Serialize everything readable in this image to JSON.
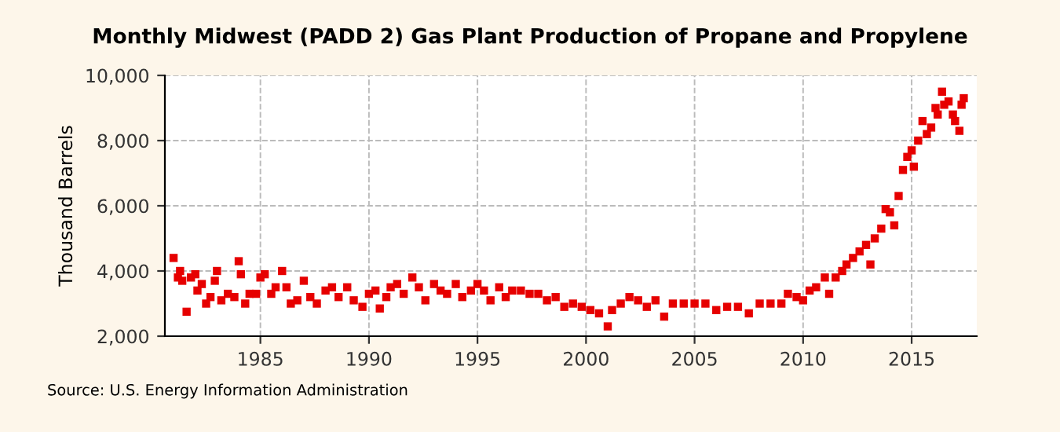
{
  "chart_data": {
    "type": "scatter",
    "title": "Monthly Midwest (PADD 2) Gas Plant Production of Propane and Propylene",
    "ylabel": "Thousand Barrels",
    "annotations": [
      "Source: U.S. Energy Information Administration"
    ],
    "x": [
      1981.0,
      1981.2,
      1981.3,
      1981.4,
      1981.6,
      1981.8,
      1982.0,
      1982.1,
      1982.3,
      1982.5,
      1982.7,
      1982.9,
      1983.0,
      1983.2,
      1983.5,
      1983.8,
      1984.0,
      1984.1,
      1984.3,
      1984.5,
      1984.8,
      1985.0,
      1985.2,
      1985.5,
      1985.7,
      1986.0,
      1986.2,
      1986.4,
      1986.7,
      1987.0,
      1987.3,
      1987.6,
      1988.0,
      1988.3,
      1988.6,
      1989.0,
      1989.3,
      1989.7,
      1990.0,
      1990.3,
      1990.5,
      1990.8,
      1991.0,
      1991.3,
      1991.6,
      1992.0,
      1992.3,
      1992.6,
      1993.0,
      1993.3,
      1993.6,
      1994.0,
      1994.3,
      1994.7,
      1995.0,
      1995.3,
      1995.6,
      1996.0,
      1996.3,
      1996.6,
      1997.0,
      1997.4,
      1997.8,
      1998.2,
      1998.6,
      1999.0,
      1999.4,
      1999.8,
      2000.2,
      2000.6,
      2001.0,
      2001.2,
      2001.6,
      2002.0,
      2002.4,
      2002.8,
      2003.2,
      2003.6,
      2004.0,
      2004.5,
      2005.0,
      2005.5,
      2006.0,
      2006.5,
      2007.0,
      2007.5,
      2008.0,
      2008.5,
      2009.0,
      2009.3,
      2009.7,
      2010.0,
      2010.3,
      2010.6,
      2011.0,
      2011.2,
      2011.5,
      2011.8,
      2012.0,
      2012.3,
      2012.6,
      2012.9,
      2013.1,
      2013.3,
      2013.6,
      2013.8,
      2014.0,
      2014.2,
      2014.4,
      2014.6,
      2014.8,
      2015.0,
      2015.1,
      2015.3,
      2015.5,
      2015.7,
      2015.9,
      2016.1,
      2016.2,
      2016.4,
      2016.5,
      2016.7,
      2016.9,
      2017.0,
      2017.2,
      2017.3,
      2017.4
    ],
    "series": [
      {
        "color": "#e60000",
        "values": [
          4400,
          3800,
          4000,
          3700,
          2750,
          3800,
          3900,
          3400,
          3600,
          3000,
          3200,
          3700,
          4000,
          3100,
          3300,
          3200,
          4300,
          3900,
          3000,
          3300,
          3300,
          3800,
          3900,
          3300,
          3500,
          4000,
          3500,
          3000,
          3100,
          3700,
          3200,
          3000,
          3400,
          3500,
          3200,
          3500,
          3100,
          2900,
          3300,
          3400,
          2850,
          3200,
          3500,
          3600,
          3300,
          3800,
          3500,
          3100,
          3600,
          3400,
          3300,
          3600,
          3200,
          3400,
          3600,
          3400,
          3100,
          3500,
          3200,
          3400,
          3400,
          3300,
          3300,
          3100,
          3200,
          2900,
          3000,
          2900,
          2800,
          2700,
          2300,
          2800,
          3000,
          3200,
          3100,
          2900,
          3100,
          2600,
          3000,
          3000,
          3000,
          3000,
          2800,
          2900,
          2900,
          2700,
          3000,
          3000,
          3000,
          3300,
          3200,
          3100,
          3400,
          3500,
          3800,
          3300,
          3800,
          4000,
          4200,
          4400,
          4600,
          4800,
          4200,
          5000,
          5300,
          5900,
          5800,
          5400,
          6300,
          7100,
          7500,
          7700,
          7200,
          8000,
          8600,
          8200,
          8400,
          9000,
          8800,
          9500,
          9100,
          9200,
          8800,
          8600,
          8300,
          9100,
          9300
        ]
      }
    ],
    "xlim": [
      1980.6,
      2018.0
    ],
    "xticks": [
      1985,
      1990,
      1995,
      2000,
      2005,
      2010,
      2015
    ],
    "ylim": [
      2000,
      10000
    ],
    "yticks": [
      {
        "value": 2000,
        "label": "2,000"
      },
      {
        "value": 4000,
        "label": "4,000"
      },
      {
        "value": 6000,
        "label": "6,000"
      },
      {
        "value": 8000,
        "label": "8,000"
      },
      {
        "value": 10000,
        "label": "10,000"
      }
    ],
    "grid": true,
    "marker": "square",
    "legend": false
  }
}
